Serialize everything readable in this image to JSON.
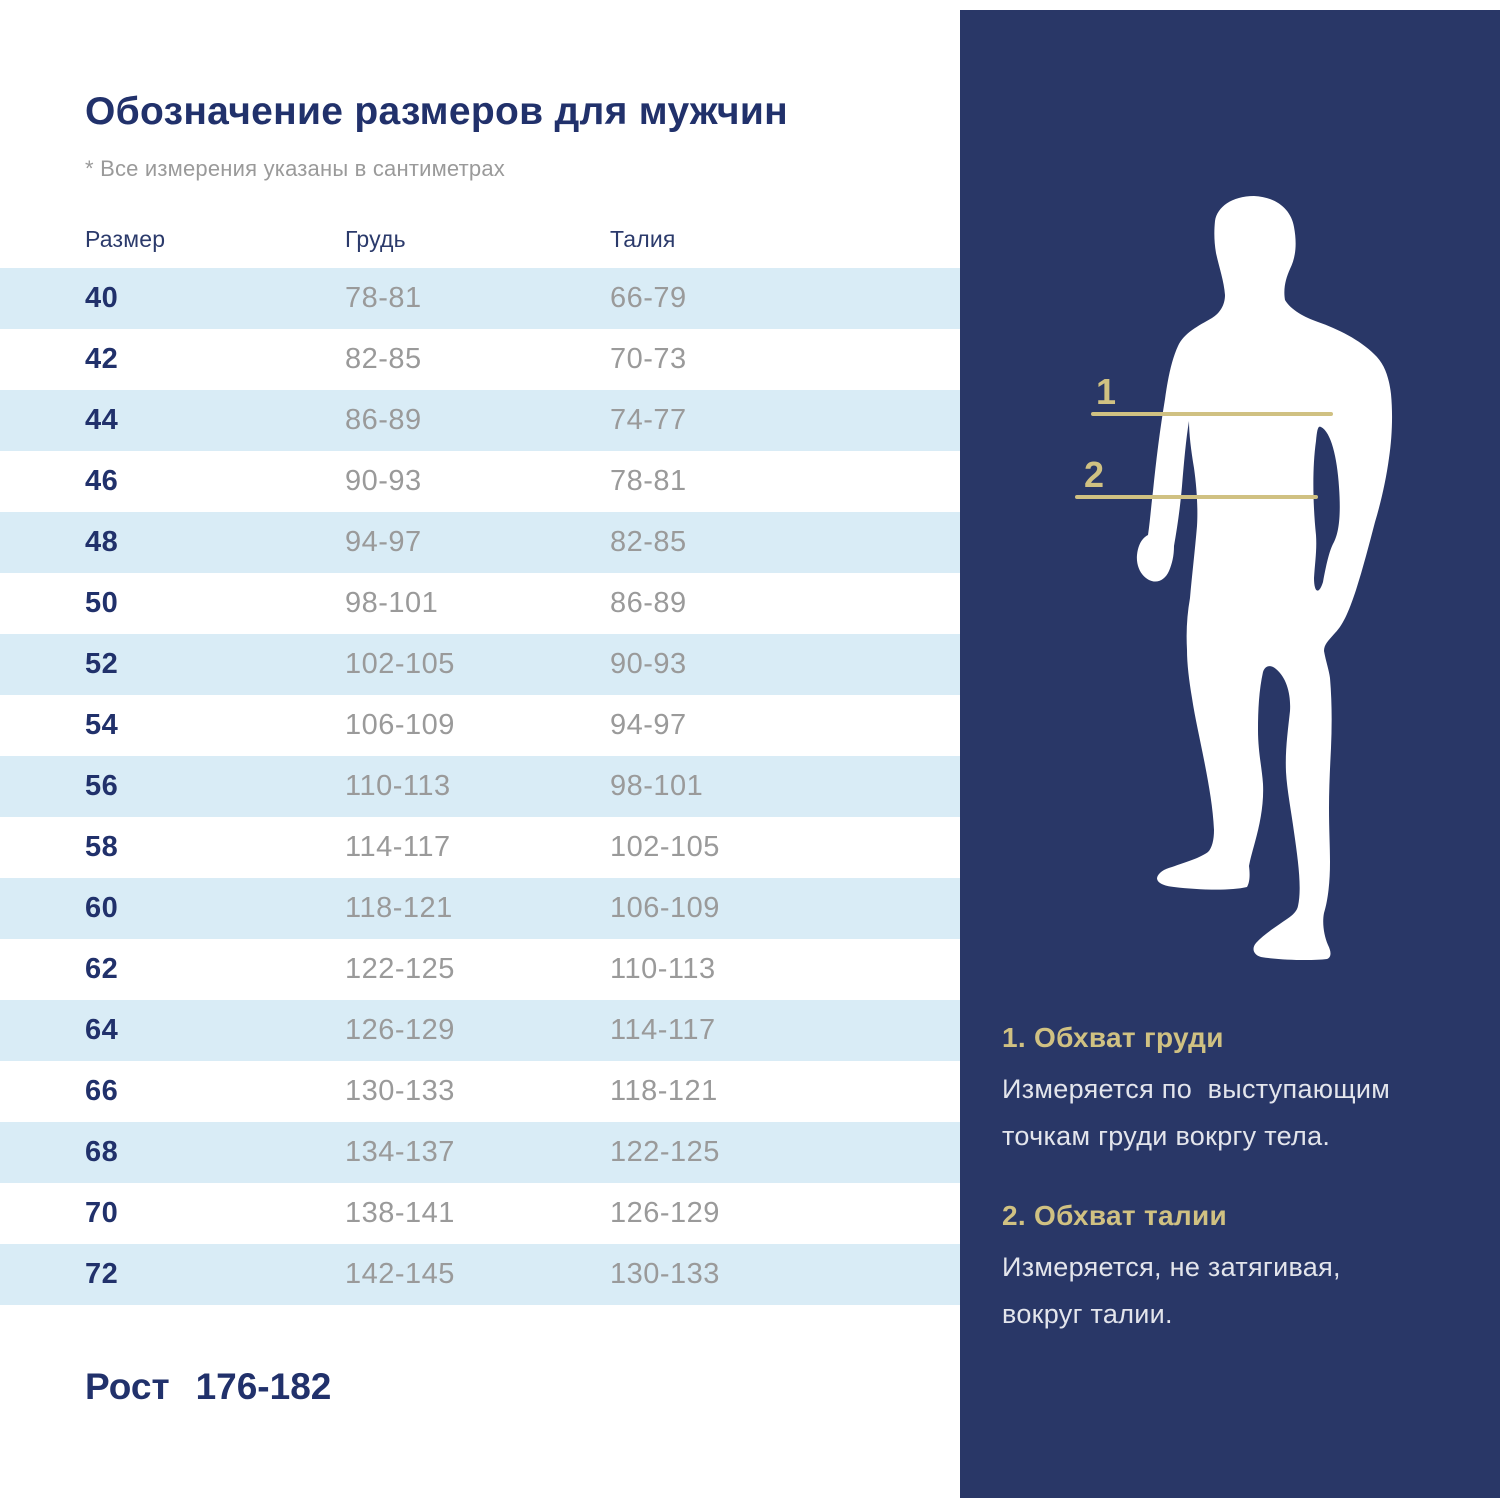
{
  "header": {
    "title": "Обозначение размеров для мужчин",
    "note": "* Все измерения указаны в сантиметрах"
  },
  "table": {
    "columns": [
      "Размер",
      "Грудь",
      "Талия"
    ],
    "rows": [
      {
        "size": "40",
        "chest": "78-81",
        "waist": "66-79"
      },
      {
        "size": "42",
        "chest": "82-85",
        "waist": "70-73"
      },
      {
        "size": "44",
        "chest": "86-89",
        "waist": "74-77"
      },
      {
        "size": "46",
        "chest": "90-93",
        "waist": "78-81"
      },
      {
        "size": "48",
        "chest": "94-97",
        "waist": "82-85"
      },
      {
        "size": "50",
        "chest": "98-101",
        "waist": "86-89"
      },
      {
        "size": "52",
        "chest": "102-105",
        "waist": "90-93"
      },
      {
        "size": "54",
        "chest": "106-109",
        "waist": "94-97"
      },
      {
        "size": "56",
        "chest": "110-113",
        "waist": "98-101"
      },
      {
        "size": "58",
        "chest": "114-117",
        "waist": "102-105"
      },
      {
        "size": "60",
        "chest": "118-121",
        "waist": "106-109"
      },
      {
        "size": "62",
        "chest": "122-125",
        "waist": "110-113"
      },
      {
        "size": "64",
        "chest": "126-129",
        "waist": "114-117"
      },
      {
        "size": "66",
        "chest": "130-133",
        "waist": "118-121"
      },
      {
        "size": "68",
        "chest": "134-137",
        "waist": "122-125"
      },
      {
        "size": "70",
        "chest": "138-141",
        "waist": "126-129"
      },
      {
        "size": "72",
        "chest": "142-145",
        "waist": "130-133"
      }
    ]
  },
  "footer": {
    "height_label": "Рост",
    "height_value": "176-182"
  },
  "panel": {
    "markers": [
      "1",
      "2"
    ],
    "sections": [
      {
        "heading": "1. Обхват груди",
        "body": "Измеряется по  выступающим\nточкам груди вокргу тела."
      },
      {
        "heading": "2. Обхват талии",
        "body": "Измеряется, не затягивая,\nвокруг талии."
      }
    ]
  },
  "colors": {
    "panel_bg": "#293767",
    "row_highlight": "#d9ecf6",
    "navy_text": "#21316b",
    "value_gray": "#9a9a9a",
    "gold": "#d0c182",
    "panel_text": "#e3e5ec"
  }
}
